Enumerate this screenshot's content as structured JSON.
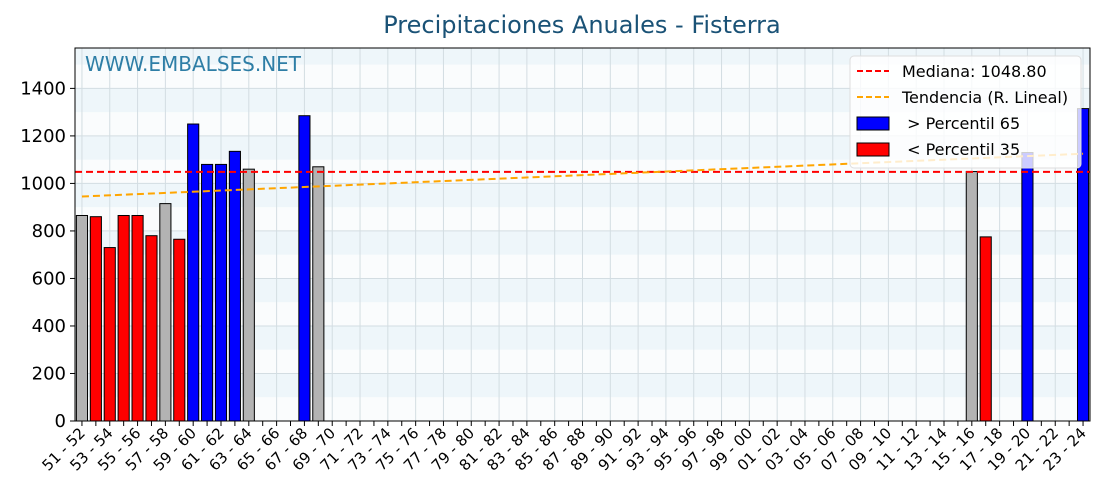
{
  "chart_data": {
    "type": "bar",
    "title": "Precipitaciones Anuales - Fisterra",
    "watermark": "WWW.EMBALSES.NET",
    "ylim": [
      0,
      1570
    ],
    "yticks": [
      0,
      200,
      400,
      600,
      800,
      1000,
      1200,
      1400
    ],
    "categories": [
      "51 - 52",
      "52 - 53",
      "53 - 54",
      "54 - 55",
      "55 - 56",
      "56 - 57",
      "57 - 58",
      "58 - 59",
      "59 - 60",
      "60 - 61",
      "61 - 62",
      "62 - 63",
      "63 - 64",
      "64 - 65",
      "65 - 66",
      "66 - 67",
      "67 - 68",
      "68 - 69",
      "69 - 70",
      "70 - 71",
      "71 - 72",
      "72 - 73",
      "73 - 74",
      "74 - 75",
      "75 - 76",
      "76 - 77",
      "77 - 78",
      "78 - 79",
      "79 - 80",
      "80 - 81",
      "81 - 82",
      "82 - 83",
      "83 - 84",
      "84 - 85",
      "85 - 86",
      "86 - 87",
      "87 - 88",
      "88 - 89",
      "89 - 90",
      "90 - 91",
      "91 - 92",
      "92 - 93",
      "93 - 94",
      "94 - 95",
      "95 - 96",
      "96 - 97",
      "97 - 98",
      "98 - 99",
      "99 - 00",
      "00 - 01",
      "01 - 02",
      "02 - 03",
      "03 - 04",
      "04 - 05",
      "05 - 06",
      "06 - 07",
      "07 - 08",
      "08 - 09",
      "09 - 10",
      "10 - 11",
      "11 - 12",
      "12 - 13",
      "13 - 14",
      "14 - 15",
      "15 - 16",
      "16 - 17",
      "17 - 18",
      "18 - 19",
      "19 - 20",
      "20 - 21",
      "21 - 22",
      "22 - 23",
      "23 - 24"
    ],
    "tick_labels": [
      "51 - 52",
      "53 - 54",
      "55 - 56",
      "57 - 58",
      "59 - 60",
      "61 - 62",
      "63 - 64",
      "65 - 66",
      "67 - 68",
      "69 - 70",
      "71 - 72",
      "73 - 74",
      "75 - 76",
      "77 - 78",
      "79 - 80",
      "81 - 82",
      "83 - 84",
      "85 - 86",
      "87 - 88",
      "89 - 90",
      "91 - 92",
      "93 - 94",
      "95 - 96",
      "97 - 98",
      "99 - 00",
      "01 - 02",
      "03 - 04",
      "05 - 06",
      "07 - 08",
      "09 - 10",
      "11 - 12",
      "13 - 14",
      "15 - 16",
      "17 - 18",
      "19 - 20",
      "21 - 22",
      "23 - 24"
    ],
    "values": [
      865,
      860,
      730,
      865,
      865,
      780,
      915,
      765,
      1250,
      1080,
      1080,
      1135,
      1060,
      null,
      null,
      null,
      1285,
      1070,
      null,
      null,
      null,
      null,
      null,
      null,
      null,
      null,
      null,
      null,
      null,
      null,
      null,
      null,
      null,
      null,
      null,
      null,
      null,
      null,
      null,
      null,
      null,
      null,
      null,
      null,
      null,
      null,
      null,
      null,
      null,
      null,
      null,
      null,
      null,
      null,
      null,
      null,
      null,
      null,
      null,
      null,
      null,
      null,
      null,
      null,
      1050,
      775,
      null,
      null,
      1130,
      null,
      null,
      null,
      1315
    ],
    "classes": [
      "mid",
      "low",
      "low",
      "low",
      "low",
      "low",
      "mid",
      "low",
      "high",
      "high",
      "high",
      "high",
      "mid",
      "",
      "",
      "",
      "high",
      "mid",
      "",
      "",
      "",
      "",
      "",
      "",
      "",
      "",
      "",
      "",
      "",
      "",
      "",
      "",
      "",
      "",
      "",
      "",
      "",
      "",
      "",
      "",
      "",
      "",
      "",
      "",
      "",
      "",
      "",
      "",
      "",
      "",
      "",
      "",
      "",
      "",
      "",
      "",
      "",
      "",
      "",
      "",
      "",
      "",
      "",
      "",
      "mid",
      "low",
      "",
      "",
      "high",
      "",
      "",
      "",
      "high"
    ],
    "median": 1048.8,
    "trend": [
      945,
      1125
    ],
    "colors": {
      "high": "#0000ff",
      "low": "#ff0000",
      "mid": "#b3b3b3",
      "median": "#ff0000",
      "trend": "#ffa500"
    },
    "legend": {
      "position": "top-right",
      "median_label": "Mediana: 1048.80",
      "trend_label": "Tendencia (R. Lineal)",
      "high_label": " > Percentil 65",
      "low_label": " < Percentil 35"
    },
    "grid": true
  }
}
